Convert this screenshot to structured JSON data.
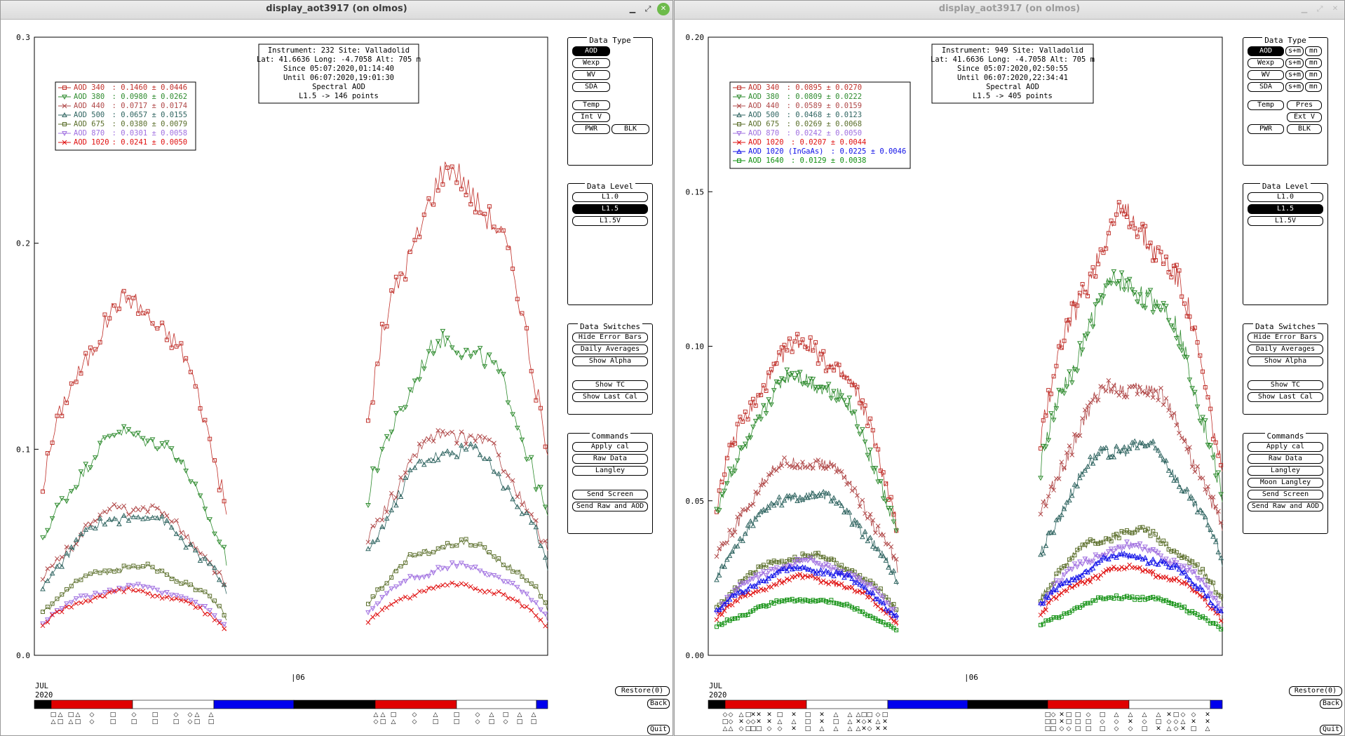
{
  "left": {
    "title": "display_aot3917 (on olmos)",
    "info": [
      "Instrument: 232 Site: Valladolid",
      "Lat: 41.6636 Long: -4.7058 Alt: 705 m",
      "Since 05:07:2020,01:14:40",
      "Until 06:07:2020,19:01:30",
      "Spectral AOD",
      "L1.5 -> 146 points"
    ],
    "legend": [
      {
        "label": "AOD 340 ",
        "value": ": 0.1460 ± 0.0446",
        "color": "#c0302a",
        "marker": "square"
      },
      {
        "label": "AOD 380 ",
        "value": ": 0.0980 ± 0.0262",
        "color": "#2e8b2e",
        "marker": "tri-down"
      },
      {
        "label": "AOD 440 ",
        "value": ": 0.0717 ± 0.0174",
        "color": "#b04848",
        "marker": "x"
      },
      {
        "label": "AOD 500 ",
        "value": ": 0.0657 ± 0.0155",
        "color": "#2f6460",
        "marker": "tri-up"
      },
      {
        "label": "AOD 675 ",
        "value": ": 0.0380 ± 0.0079",
        "color": "#5a6e2a",
        "marker": "square"
      },
      {
        "label": "AOD 870 ",
        "value": ": 0.0301 ± 0.0058",
        "color": "#a070e0",
        "marker": "tri-down"
      },
      {
        "label": "AOD 1020",
        "value": ": 0.0241 ± 0.0050",
        "color": "#e01010",
        "marker": "x"
      }
    ],
    "yticks": [
      "0.0",
      "0.1",
      "0.2",
      "0.3"
    ],
    "ymax": 0.3,
    "xtick": "|06",
    "month": "JUL",
    "year": "2020",
    "panel": {
      "data_type_title": "Data Type",
      "data_type_buttons": [
        "AOD",
        "Wexp",
        "WV",
        "SDA",
        "Temp",
        "Int V",
        "PWR",
        "BLK"
      ],
      "data_type_selected": "AOD",
      "data_level_title": "Data Level",
      "data_level_buttons": [
        "L1.0",
        "L1.5",
        "L1.5V"
      ],
      "data_level_selected": "L1.5",
      "data_switches_title": "Data Switches",
      "data_switches_buttons": [
        "Hide Error Bars",
        "Daily Averages",
        "Show Alpha",
        "Show TC",
        "Show Last Cal"
      ],
      "commands_title": "Commands",
      "commands_buttons": [
        "Apply cal",
        "Raw Data",
        "Langley",
        "Send Screen",
        "Send Raw and AOD"
      ]
    },
    "bottom_buttons": [
      "Restore(0)",
      "Back",
      "Quit"
    ]
  },
  "right": {
    "title": "display_aot3917 (on olmos)",
    "info": [
      "Instrument: 949 Site: Valladolid",
      "Lat: 41.6636 Long: -4.7058 Alt: 705 m",
      "Since 05:07:2020,02:50:55",
      "Until 06:07:2020,22:34:41",
      "Spectral AOD",
      "L1.5 -> 405 points"
    ],
    "legend": [
      {
        "label": "AOD 340 ",
        "value": ": 0.0895 ± 0.0270",
        "color": "#c0302a",
        "marker": "square"
      },
      {
        "label": "AOD 380 ",
        "value": ": 0.0809 ± 0.0222",
        "color": "#2e8b2e",
        "marker": "tri-down"
      },
      {
        "label": "AOD 440 ",
        "value": ": 0.0589 ± 0.0159",
        "color": "#b04848",
        "marker": "x"
      },
      {
        "label": "AOD 500 ",
        "value": ": 0.0468 ± 0.0123",
        "color": "#2f6460",
        "marker": "tri-up"
      },
      {
        "label": "AOD 675 ",
        "value": ": 0.0269 ± 0.0068",
        "color": "#5a6e2a",
        "marker": "square"
      },
      {
        "label": "AOD 870 ",
        "value": ": 0.0242 ± 0.0050",
        "color": "#a070e0",
        "marker": "tri-down"
      },
      {
        "label": "AOD 1020 ",
        "value": ": 0.0207 ± 0.0044",
        "color": "#e01010",
        "marker": "x"
      },
      {
        "label": "AOD 1020 (InGaAs) ",
        "value": ": 0.0225 ± 0.0046",
        "color": "#1010e8",
        "marker": "tri-up"
      },
      {
        "label": "AOD 1640 ",
        "value": ": 0.0129 ± 0.0038",
        "color": "#109010",
        "marker": "square"
      }
    ],
    "yticks": [
      "0.00",
      "0.05",
      "0.10",
      "0.15",
      "0.20"
    ],
    "ymax": 0.2,
    "xtick": "|06",
    "month": "JUL",
    "year": "2020",
    "panel": {
      "data_type_title": "Data Type",
      "data_type_buttons": [
        "AOD",
        "s+m",
        "mn",
        "Wexp",
        "s+m",
        "mn",
        "WV",
        "s+m",
        "mn",
        "SDA",
        "s+m",
        "mn",
        "Temp",
        "Pres",
        "Ext V",
        "PWR",
        "BLK"
      ],
      "data_type_selected": "AOD",
      "data_level_title": "Data Level",
      "data_level_buttons": [
        "L1.0",
        "L1.5",
        "L1.5V"
      ],
      "data_level_selected": "L1.5",
      "data_switches_title": "Data Switches",
      "data_switches_buttons": [
        "Hide Error Bars",
        "Daily Averages",
        "Show Alpha",
        "Show TC",
        "Show Last Cal"
      ],
      "commands_title": "Commands",
      "commands_buttons": [
        "Apply cal",
        "Raw Data",
        "Langley",
        "Moon Langley",
        "Send Screen",
        "Send Raw and AOD"
      ]
    },
    "bottom_buttons": [
      "Restore(0)",
      "Back",
      "Quit"
    ]
  },
  "chart_data": [
    {
      "type": "scatter",
      "title": "Spectral AOD",
      "ylim": [
        0,
        0.3
      ],
      "x_label_ticks": [
        "|06"
      ],
      "series": [
        {
          "name": "AOD 340",
          "mean": 0.146,
          "std": 0.0446,
          "peak_day1": 0.17,
          "peak_day2": 0.232
        },
        {
          "name": "AOD 380",
          "mean": 0.098,
          "std": 0.0262,
          "peak_day1": 0.108,
          "peak_day2": 0.152
        },
        {
          "name": "AOD 440",
          "mean": 0.0717,
          "std": 0.0174,
          "peak_day1": 0.072,
          "peak_day2": 0.108
        },
        {
          "name": "AOD 500",
          "mean": 0.0657,
          "std": 0.0155,
          "peak_day1": 0.068,
          "peak_day2": 0.1
        },
        {
          "name": "AOD 675",
          "mean": 0.038,
          "std": 0.0079,
          "peak_day1": 0.043,
          "peak_day2": 0.054
        },
        {
          "name": "AOD 870",
          "mean": 0.0301,
          "std": 0.0058,
          "peak_day1": 0.033,
          "peak_day2": 0.043
        },
        {
          "name": "AOD 1020",
          "mean": 0.0241,
          "std": 0.005,
          "peak_day1": 0.031,
          "peak_day2": 0.034
        }
      ]
    },
    {
      "type": "scatter",
      "title": "Spectral AOD",
      "ylim": [
        0,
        0.2
      ],
      "x_label_ticks": [
        "|06"
      ],
      "series": [
        {
          "name": "AOD 340",
          "mean": 0.0895,
          "std": 0.027,
          "peak_day1": 0.1,
          "peak_day2": 0.14
        },
        {
          "name": "AOD 380",
          "mean": 0.0809,
          "std": 0.0222,
          "peak_day1": 0.09,
          "peak_day2": 0.12
        },
        {
          "name": "AOD 440",
          "mean": 0.0589,
          "std": 0.0159,
          "peak_day1": 0.063,
          "peak_day2": 0.088
        },
        {
          "name": "AOD 500",
          "mean": 0.0468,
          "std": 0.0123,
          "peak_day1": 0.052,
          "peak_day2": 0.068
        },
        {
          "name": "AOD 675",
          "mean": 0.0269,
          "std": 0.0068,
          "peak_day1": 0.032,
          "peak_day2": 0.04
        },
        {
          "name": "AOD 870",
          "mean": 0.0242,
          "std": 0.005,
          "peak_day1": 0.03,
          "peak_day2": 0.035
        },
        {
          "name": "AOD 1020",
          "mean": 0.0207,
          "std": 0.0044,
          "peak_day1": 0.025,
          "peak_day2": 0.028
        },
        {
          "name": "AOD 1020 (InGaAs)",
          "mean": 0.0225,
          "std": 0.0046,
          "peak_day1": 0.028,
          "peak_day2": 0.032
        },
        {
          "name": "AOD 1640",
          "mean": 0.0129,
          "std": 0.0038,
          "peak_day1": 0.018,
          "peak_day2": 0.019
        }
      ]
    }
  ]
}
